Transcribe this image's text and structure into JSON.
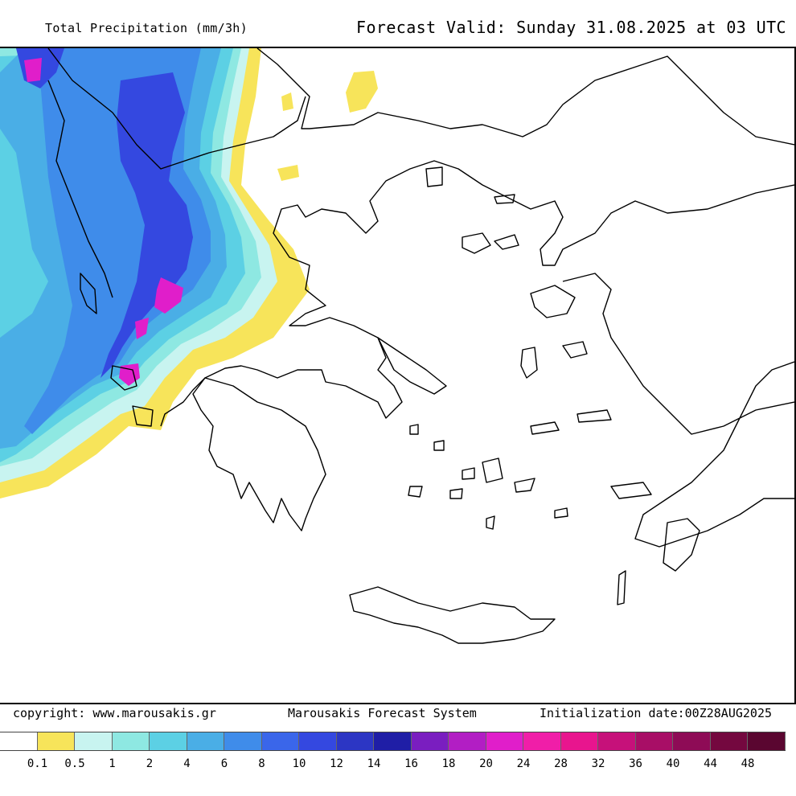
{
  "header": {
    "title": "Total Precipitation (mm/3h)",
    "valid": "Forecast Valid:  Sunday 31.08.2025 at 03 UTC"
  },
  "footer": {
    "copyright": "copyright: www.marousakis.gr",
    "system": "Marousakis Forecast System",
    "init": "Initialization date:00Z28AUG2025"
  },
  "legend": {
    "colors": [
      "#ffffff",
      "#f7e45a",
      "#c8f4f0",
      "#8ee8e2",
      "#5cd0e4",
      "#4aaee6",
      "#3f8cea",
      "#3a66ea",
      "#3448e0",
      "#2c36c4",
      "#1f1ea6",
      "#7a1ec0",
      "#b21ec4",
      "#e01eca",
      "#f01ea8",
      "#e8158e",
      "#c6117a",
      "#a80e66",
      "#8e0b56",
      "#74083f",
      "#5a0630"
    ],
    "labels": [
      "0.1",
      "0.5",
      "1",
      "2",
      "4",
      "6",
      "8",
      "10",
      "12",
      "14",
      "16",
      "18",
      "20",
      "24",
      "28",
      "32",
      "36",
      "40",
      "44",
      "48"
    ]
  },
  "map": {
    "region": "Greece and surrounding Balkans / Aegean",
    "colors": {
      "yellow": "#f7e45a",
      "light_cyan": "#c8f4f0",
      "cyan": "#8ee8e2",
      "sky": "#5cd0e4",
      "blue": "#4aaee6",
      "mid_blue": "#3f8cea",
      "deep_blue": "#3448e0",
      "magenta": "#e01eca",
      "coast": "#000000"
    }
  }
}
